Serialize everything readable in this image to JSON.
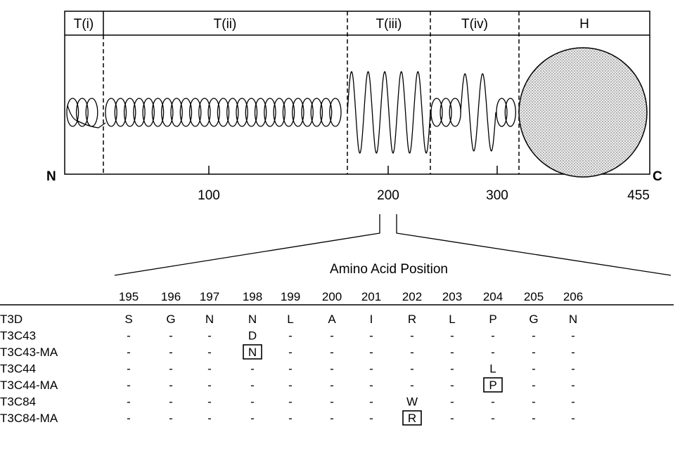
{
  "diagram": {
    "regions": [
      "T(i)",
      "T(ii)",
      "T(iii)",
      "T(iv)",
      "H"
    ],
    "n_terminus": "N",
    "c_terminus": "C",
    "axis_ticks": [
      "100",
      "200",
      "300",
      "455"
    ],
    "detail_title": "Amino Acid Position"
  },
  "table": {
    "positions": [
      "195",
      "196",
      "197",
      "198",
      "199",
      "200",
      "201",
      "202",
      "203",
      "204",
      "205",
      "206"
    ],
    "rows": [
      {
        "strain": "T3D",
        "cells": [
          "S",
          "G",
          "N",
          "N",
          "L",
          "A",
          "I",
          "R",
          "L",
          "P",
          "G",
          "N"
        ],
        "boxed": -1
      },
      {
        "strain": "T3C43",
        "cells": [
          "-",
          "-",
          "-",
          "D",
          "-",
          "-",
          "-",
          "-",
          "-",
          "-",
          "-",
          "-"
        ],
        "boxed": -1
      },
      {
        "strain": "T3C43-MA",
        "cells": [
          "-",
          "-",
          "-",
          "N",
          "-",
          "-",
          "-",
          "-",
          "-",
          "-",
          "-",
          "-"
        ],
        "boxed": 3
      },
      {
        "strain": "T3C44",
        "cells": [
          "-",
          "-",
          "-",
          "-",
          "-",
          "-",
          "-",
          "-",
          "-",
          "L",
          "-",
          "-"
        ],
        "boxed": -1
      },
      {
        "strain": "T3C44-MA",
        "cells": [
          "-",
          "-",
          "-",
          "-",
          "-",
          "-",
          "-",
          "-",
          "-",
          "P",
          "-",
          "-"
        ],
        "boxed": 9
      },
      {
        "strain": "T3C84",
        "cells": [
          "-",
          "-",
          "-",
          "-",
          "-",
          "-",
          "-",
          "W",
          "-",
          "-",
          "-",
          "-"
        ],
        "boxed": -1
      },
      {
        "strain": "T3C84-MA",
        "cells": [
          "-",
          "-",
          "-",
          "-",
          "-",
          "-",
          "-",
          "R",
          "-",
          "-",
          "-",
          "-"
        ],
        "boxed": 7
      }
    ]
  }
}
